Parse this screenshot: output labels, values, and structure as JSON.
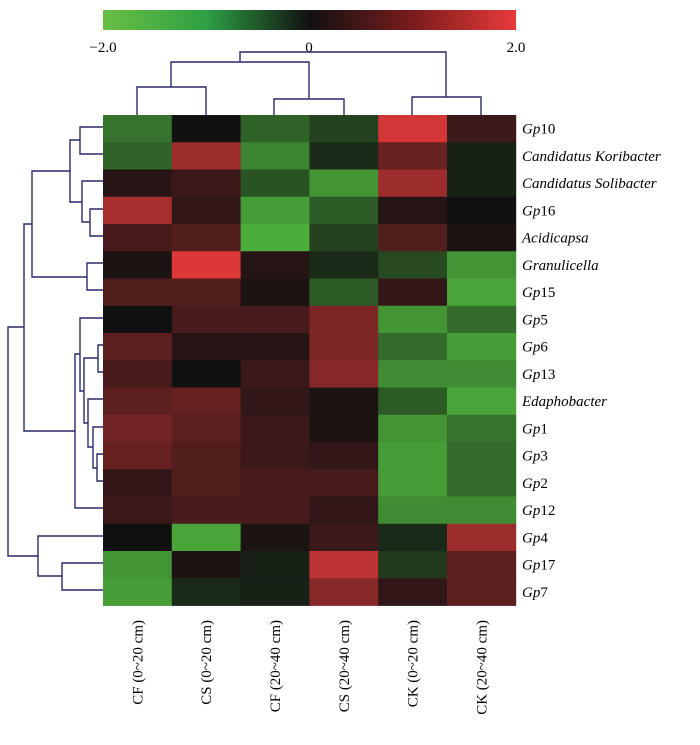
{
  "chart_data": {
    "type": "heatmap",
    "title": "",
    "colorbar": {
      "min": -2.0,
      "max": 2.0,
      "ticks": [
        "−2.0",
        "0",
        "2.0"
      ],
      "low_color": "#6abf45",
      "mid_color": "#111111",
      "high_color": "#e83a3a"
    },
    "columns": [
      "CF (0~20 cm)",
      "CS (0~20 cm)",
      "CF (20~40 cm)",
      "CS (20~40 cm)",
      "CK (0~20 cm)",
      "CK (20~40 cm)"
    ],
    "rows": [
      {
        "label": "Gp10",
        "prefix": "Gp",
        "suffix": "10"
      },
      {
        "label": "Candidatus Koribacter",
        "prefix": "Candidatus Koribacter",
        "suffix": ""
      },
      {
        "label": "Candidatus Solibacter",
        "prefix": "Candidatus Solibacter",
        "suffix": ""
      },
      {
        "label": "Gp16",
        "prefix": "Gp",
        "suffix": "16"
      },
      {
        "label": "Acidicapsa",
        "prefix": "Acidicapsa",
        "suffix": ""
      },
      {
        "label": "Granulicella",
        "prefix": "Granulicella",
        "suffix": ""
      },
      {
        "label": "Gp15",
        "prefix": "Gp",
        "suffix": "15"
      },
      {
        "label": "Gp5",
        "prefix": "Gp",
        "suffix": "5"
      },
      {
        "label": "Gp6",
        "prefix": "Gp",
        "suffix": "6"
      },
      {
        "label": "Gp13",
        "prefix": "Gp",
        "suffix": "13"
      },
      {
        "label": "Edaphobacter",
        "prefix": "Edaphobacter",
        "suffix": ""
      },
      {
        "label": "Gp1",
        "prefix": "Gp",
        "suffix": "1"
      },
      {
        "label": "Gp3",
        "prefix": "Gp",
        "suffix": "3"
      },
      {
        "label": "Gp2",
        "prefix": "Gp",
        "suffix": "2"
      },
      {
        "label": "Gp12",
        "prefix": "Gp",
        "suffix": "12"
      },
      {
        "label": "Gp4",
        "prefix": "Gp",
        "suffix": "4"
      },
      {
        "label": "Gp17",
        "prefix": "Gp",
        "suffix": "17"
      },
      {
        "label": "Gp7",
        "prefix": "Gp",
        "suffix": "7"
      }
    ],
    "values": [
      [
        -1.2,
        0.0,
        -1.0,
        -0.6,
        1.8,
        0.4
      ],
      [
        -1.0,
        1.3,
        -1.4,
        -0.3,
        0.8,
        -0.2
      ],
      [
        0.2,
        0.4,
        -0.8,
        -1.6,
        1.3,
        -0.2
      ],
      [
        1.4,
        0.3,
        -1.7,
        -0.9,
        0.2,
        0.0
      ],
      [
        0.5,
        0.6,
        -1.9,
        -0.6,
        0.6,
        0.1
      ],
      [
        0.1,
        1.9,
        0.2,
        -0.3,
        -0.7,
        -1.6
      ],
      [
        0.6,
        0.6,
        0.1,
        -0.9,
        0.3,
        -1.8
      ],
      [
        0.0,
        0.5,
        0.5,
        1.0,
        -1.6,
        -1.1
      ],
      [
        0.7,
        0.2,
        0.2,
        1.0,
        -1.1,
        -1.7
      ],
      [
        0.5,
        0.0,
        0.4,
        1.1,
        -1.5,
        -1.5
      ],
      [
        0.7,
        0.8,
        0.3,
        0.1,
        -0.9,
        -1.8
      ],
      [
        0.9,
        0.7,
        0.4,
        0.1,
        -1.6,
        -1.2
      ],
      [
        0.8,
        0.6,
        0.4,
        0.3,
        -1.7,
        -1.1
      ],
      [
        0.3,
        0.6,
        0.5,
        0.5,
        -1.7,
        -1.1
      ],
      [
        0.4,
        0.5,
        0.5,
        0.3,
        -1.5,
        -1.5
      ],
      [
        0.0,
        -1.8,
        0.1,
        0.4,
        -0.3,
        1.3
      ],
      [
        -1.6,
        0.1,
        -0.2,
        1.6,
        -0.5,
        0.7
      ],
      [
        -1.7,
        -0.3,
        -0.2,
        1.1,
        0.3,
        0.7
      ]
    ]
  }
}
